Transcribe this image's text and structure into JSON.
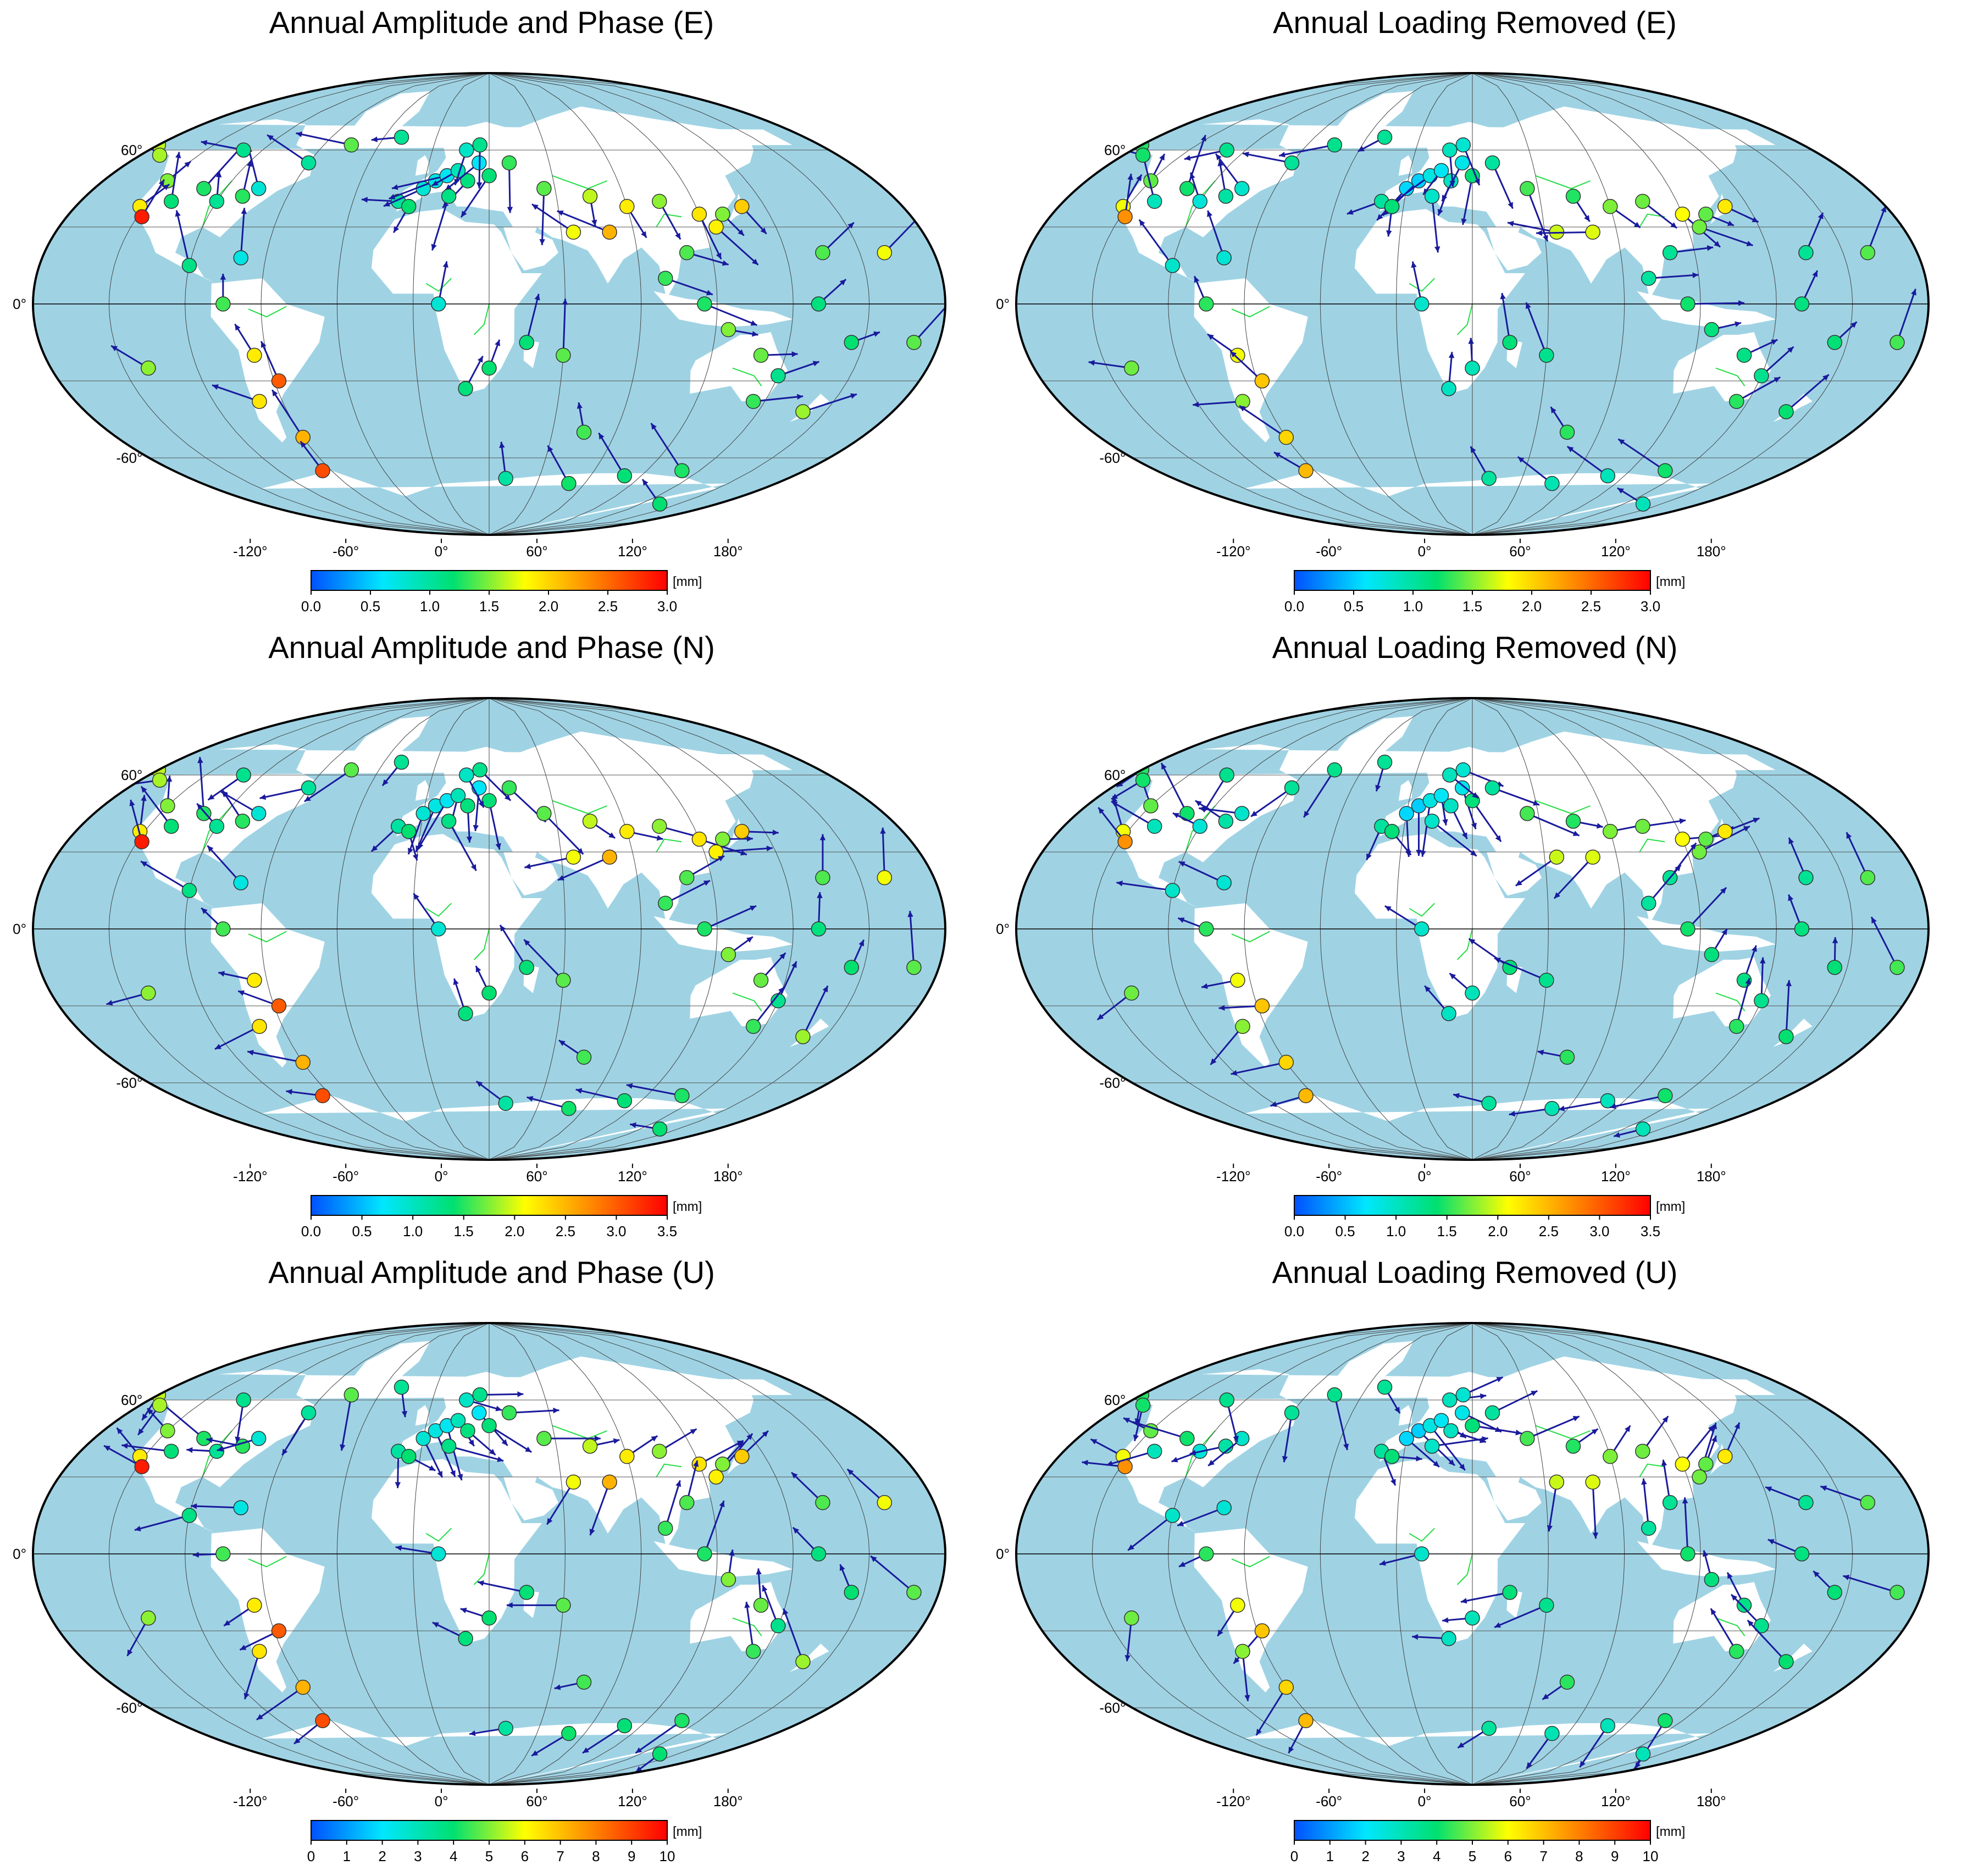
{
  "panels": [
    {
      "title": "Annual Amplitude and Phase (E)",
      "unit": "[mm]",
      "ticks": [
        "0.0",
        "0.5",
        "1.0",
        "1.5",
        "2.0",
        "2.5",
        "3.0"
      ],
      "vmax": 3.0
    },
    {
      "title": "Annual Loading Removed (E)",
      "unit": "[mm]",
      "ticks": [
        "0.0",
        "0.5",
        "1.0",
        "1.5",
        "2.0",
        "2.5",
        "3.0"
      ],
      "vmax": 3.0
    },
    {
      "title": "Annual Amplitude and Phase (N)",
      "unit": "[mm]",
      "ticks": [
        "0.0",
        "0.5",
        "1.0",
        "1.5",
        "2.0",
        "2.5",
        "3.0",
        "3.5"
      ],
      "vmax": 3.5
    },
    {
      "title": "Annual Loading Removed (N)",
      "unit": "[mm]",
      "ticks": [
        "0.0",
        "0.5",
        "1.0",
        "1.5",
        "2.0",
        "2.5",
        "3.0",
        "3.5"
      ],
      "vmax": 3.5
    },
    {
      "title": "Annual Amplitude and Phase (U)",
      "unit": "[mm]",
      "ticks": [
        "0",
        "1",
        "2",
        "3",
        "4",
        "5",
        "6",
        "7",
        "8",
        "9",
        "10"
      ],
      "vmax": 10
    },
    {
      "title": "Annual Loading Removed (U)",
      "unit": "[mm]",
      "ticks": [
        "0",
        "1",
        "2",
        "3",
        "4",
        "5",
        "6",
        "7",
        "8",
        "9",
        "10"
      ],
      "vmax": 10
    }
  ],
  "map_labels": {
    "lat": [
      "60°",
      "0°",
      "-60°"
    ],
    "lon": [
      "-120°",
      "-60°",
      "0°",
      "60°",
      "120°",
      "180°"
    ]
  },
  "colors": {
    "ocean": "#9fd3e4",
    "land": "#ffffff",
    "rivers": "#22dd44",
    "arrow": "#1a1a9c",
    "colormap": [
      "#0050ff",
      "#00e6ff",
      "#00e070",
      "#ffff00",
      "#ff8000",
      "#ff0000"
    ]
  },
  "stations": [
    [
      -120,
      48,
      0.5,
      40
    ],
    [
      -122,
      38,
      0.6,
      30
    ],
    [
      -118,
      34,
      0.9,
      45
    ],
    [
      -110,
      40,
      0.3,
      60
    ],
    [
      -100,
      45,
      0.4,
      20
    ],
    [
      -90,
      40,
      0.3,
      50
    ],
    [
      -80,
      42,
      0.35,
      35
    ],
    [
      -75,
      45,
      0.25,
      55
    ],
    [
      -70,
      18,
      0.2,
      30
    ],
    [
      -90,
      15,
      0.3,
      40
    ],
    [
      -75,
      0,
      0.45,
      20
    ],
    [
      -65,
      -20,
      0.6,
      45
    ],
    [
      -58,
      -30,
      0.8,
      30
    ],
    [
      -70,
      -38,
      0.55,
      70
    ],
    [
      -60,
      -52,
      0.7,
      25
    ],
    [
      -150,
      62,
      0.5,
      40
    ],
    [
      -140,
      58,
      0.45,
      30
    ],
    [
      -100,
      60,
      0.35,
      50
    ],
    [
      -60,
      55,
      0.3,
      20
    ],
    [
      -45,
      62,
      0.4,
      35
    ],
    [
      -20,
      65,
      0.35,
      45
    ],
    [
      -10,
      40,
      0.3,
      30
    ],
    [
      0,
      45,
      0.2,
      50
    ],
    [
      5,
      48,
      0.15,
      40
    ],
    [
      10,
      50,
      0.2,
      25
    ],
    [
      15,
      52,
      0.25,
      35
    ],
    [
      20,
      48,
      0.3,
      45
    ],
    [
      25,
      55,
      0.2,
      30
    ],
    [
      30,
      50,
      0.35,
      40
    ],
    [
      12,
      42,
      0.3,
      50
    ],
    [
      -5,
      38,
      0.4,
      30
    ],
    [
      18,
      60,
      0.25,
      35
    ],
    [
      25,
      62,
      0.3,
      45
    ],
    [
      40,
      55,
      0.35,
      40
    ],
    [
      55,
      45,
      0.45,
      30
    ],
    [
      75,
      42,
      0.5,
      35
    ],
    [
      90,
      38,
      0.55,
      50
    ],
    [
      105,
      40,
      0.5,
      40
    ],
    [
      120,
      35,
      0.6,
      30
    ],
    [
      125,
      30,
      0.55,
      45
    ],
    [
      130,
      35,
      0.5,
      35
    ],
    [
      140,
      38,
      0.65,
      25
    ],
    [
      110,
      20,
      0.4,
      50
    ],
    [
      100,
      10,
      0.35,
      40
    ],
    [
      115,
      0,
      0.4,
      30
    ],
    [
      125,
      -10,
      0.45,
      35
    ],
    [
      140,
      -20,
      0.4,
      40
    ],
    [
      150,
      -28,
      0.35,
      50
    ],
    [
      145,
      -38,
      0.4,
      30
    ],
    [
      170,
      -42,
      0.45,
      35
    ],
    [
      175,
      -15,
      0.4,
      30
    ],
    [
      160,
      0,
      0.35,
      45
    ],
    [
      165,
      20,
      0.4,
      40
    ],
    [
      -170,
      20,
      0.5,
      35
    ],
    [
      -160,
      -15,
      0.45,
      30
    ],
    [
      30,
      -25,
      0.35,
      45
    ],
    [
      20,
      -33,
      0.3,
      30
    ],
    [
      10,
      0,
      0.25,
      40
    ],
    [
      45,
      -15,
      0.35,
      30
    ],
    [
      60,
      -20,
      0.4,
      35
    ],
    [
      75,
      -50,
      0.45,
      40
    ],
    [
      40,
      -68,
      0.3,
      30
    ],
    [
      80,
      -70,
      0.35,
      45
    ],
    [
      110,
      -67,
      0.3,
      40
    ],
    [
      140,
      -65,
      0.4,
      35
    ],
    [
      165,
      -78,
      0.35,
      30
    ],
    [
      -65,
      -65,
      0.8,
      25
    ],
    [
      -110,
      -25,
      0.5,
      40
    ],
    [
      65,
      28,
      0.55,
      30
    ],
    [
      80,
      28,
      0.65,
      35
    ]
  ]
}
